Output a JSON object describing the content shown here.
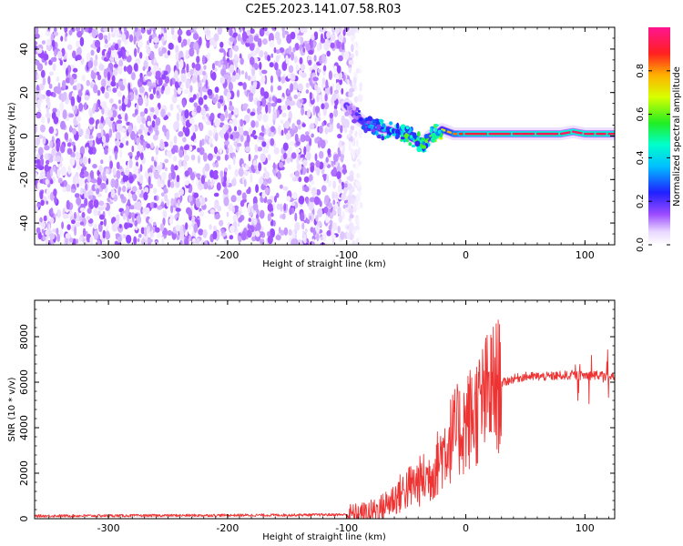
{
  "title": "C2E5.2023.141.07.58.R03",
  "chart_data": [
    {
      "type": "heatmap",
      "xlabel": "Height of straight line (km)",
      "ylabel": "Frequency (Hz)",
      "xlim": [
        -362,
        125
      ],
      "ylim": [
        -50,
        50
      ],
      "xticks": [
        -300,
        -200,
        -100,
        0,
        100
      ],
      "yticks": [
        -40,
        -20,
        0,
        20,
        40
      ],
      "grid": false,
      "noise_region": {
        "x_start": -362,
        "x_end": -88,
        "max_amplitude": 0.15
      },
      "signal_trace": {
        "x": [
          -100,
          -95,
          -90,
          -85,
          -80,
          -75,
          -70,
          -65,
          -60,
          -55,
          -50,
          -45,
          -40,
          -35,
          -30,
          -25,
          -20,
          -15,
          -10,
          -5,
          0,
          20,
          40,
          60,
          80,
          90,
          100,
          110,
          120,
          125
        ],
        "frequency": [
          14,
          11,
          8,
          6,
          5,
          4,
          3,
          3,
          2,
          2,
          1,
          -1,
          -2,
          -3,
          0,
          1,
          3,
          2,
          1,
          1,
          1,
          1,
          1,
          1,
          1,
          2,
          1,
          1,
          1,
          1
        ],
        "amplitude": [
          0.1,
          0.15,
          0.25,
          0.3,
          0.35,
          0.4,
          0.45,
          0.5,
          0.45,
          0.5,
          0.55,
          0.5,
          0.55,
          0.55,
          0.6,
          0.6,
          0.7,
          0.75,
          0.8,
          0.85,
          0.9,
          0.92,
          0.93,
          0.93,
          0.94,
          0.95,
          0.94,
          0.94,
          0.93,
          0.93
        ]
      },
      "colorbar": {
        "label": "Normalized spectral amplitude",
        "range": [
          0,
          1
        ],
        "ticks": [
          0.0,
          0.2,
          0.4,
          0.6,
          0.8
        ],
        "colormap": "rainbow (white, violet, blue, cyan, green, yellow, red, pink)"
      }
    },
    {
      "type": "line",
      "xlabel": "Height of straight line (km)",
      "ylabel": "SNR (10 * v/v)",
      "xlim": [
        -362,
        125
      ],
      "ylim": [
        0,
        9600
      ],
      "xticks": [
        -300,
        -200,
        -100,
        0,
        100
      ],
      "yticks": [
        0,
        2000,
        4000,
        6000,
        8000
      ],
      "grid": false,
      "series": [
        {
          "color": "#ee3333",
          "x": [
            -362,
            -300,
            -250,
            -200,
            -150,
            -100,
            -90,
            -80,
            -70,
            -60,
            -50,
            -40,
            -30,
            -25,
            -20,
            -15,
            -10,
            -5,
            0,
            5,
            10,
            15,
            20,
            30,
            40,
            50,
            60,
            70,
            80,
            90,
            100,
            110,
            115,
            120,
            125
          ],
          "y": [
            120,
            130,
            140,
            150,
            160,
            180,
            200,
            300,
            500,
            900,
            1300,
            1600,
            1900,
            2300,
            2900,
            3300,
            3700,
            3900,
            4200,
            4500,
            4800,
            5200,
            5600,
            5950,
            6150,
            6250,
            6250,
            6250,
            6300,
            6300,
            6300,
            6300,
            6300,
            6200,
            6200
          ]
        }
      ]
    }
  ]
}
